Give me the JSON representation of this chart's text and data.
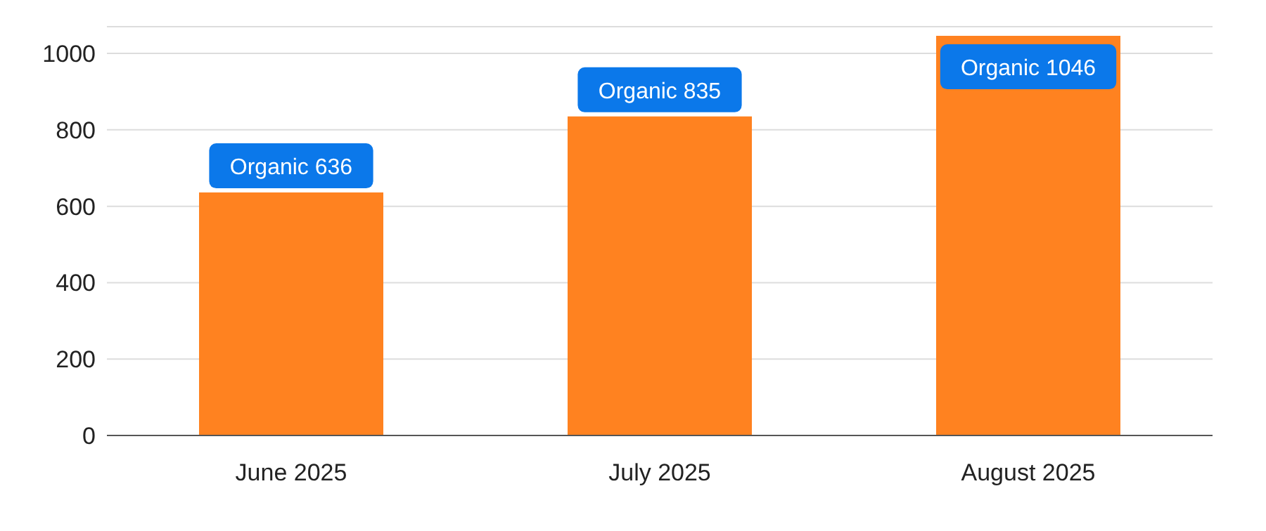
{
  "chart_data": {
    "type": "bar",
    "categories": [
      "June 2025",
      "July 2025",
      "August 2025"
    ],
    "series": [
      {
        "color": "#ff8220",
        "values": [
          636,
          835,
          1046
        ],
        "value_labels": [
          "Organic 636",
          "Organic 835",
          "Organic 1046"
        ]
      }
    ],
    "ylim": [
      0,
      1070
    ],
    "yticks": [
      0,
      200,
      400,
      600,
      800,
      1000
    ],
    "grid": "y",
    "legend": false
  }
}
